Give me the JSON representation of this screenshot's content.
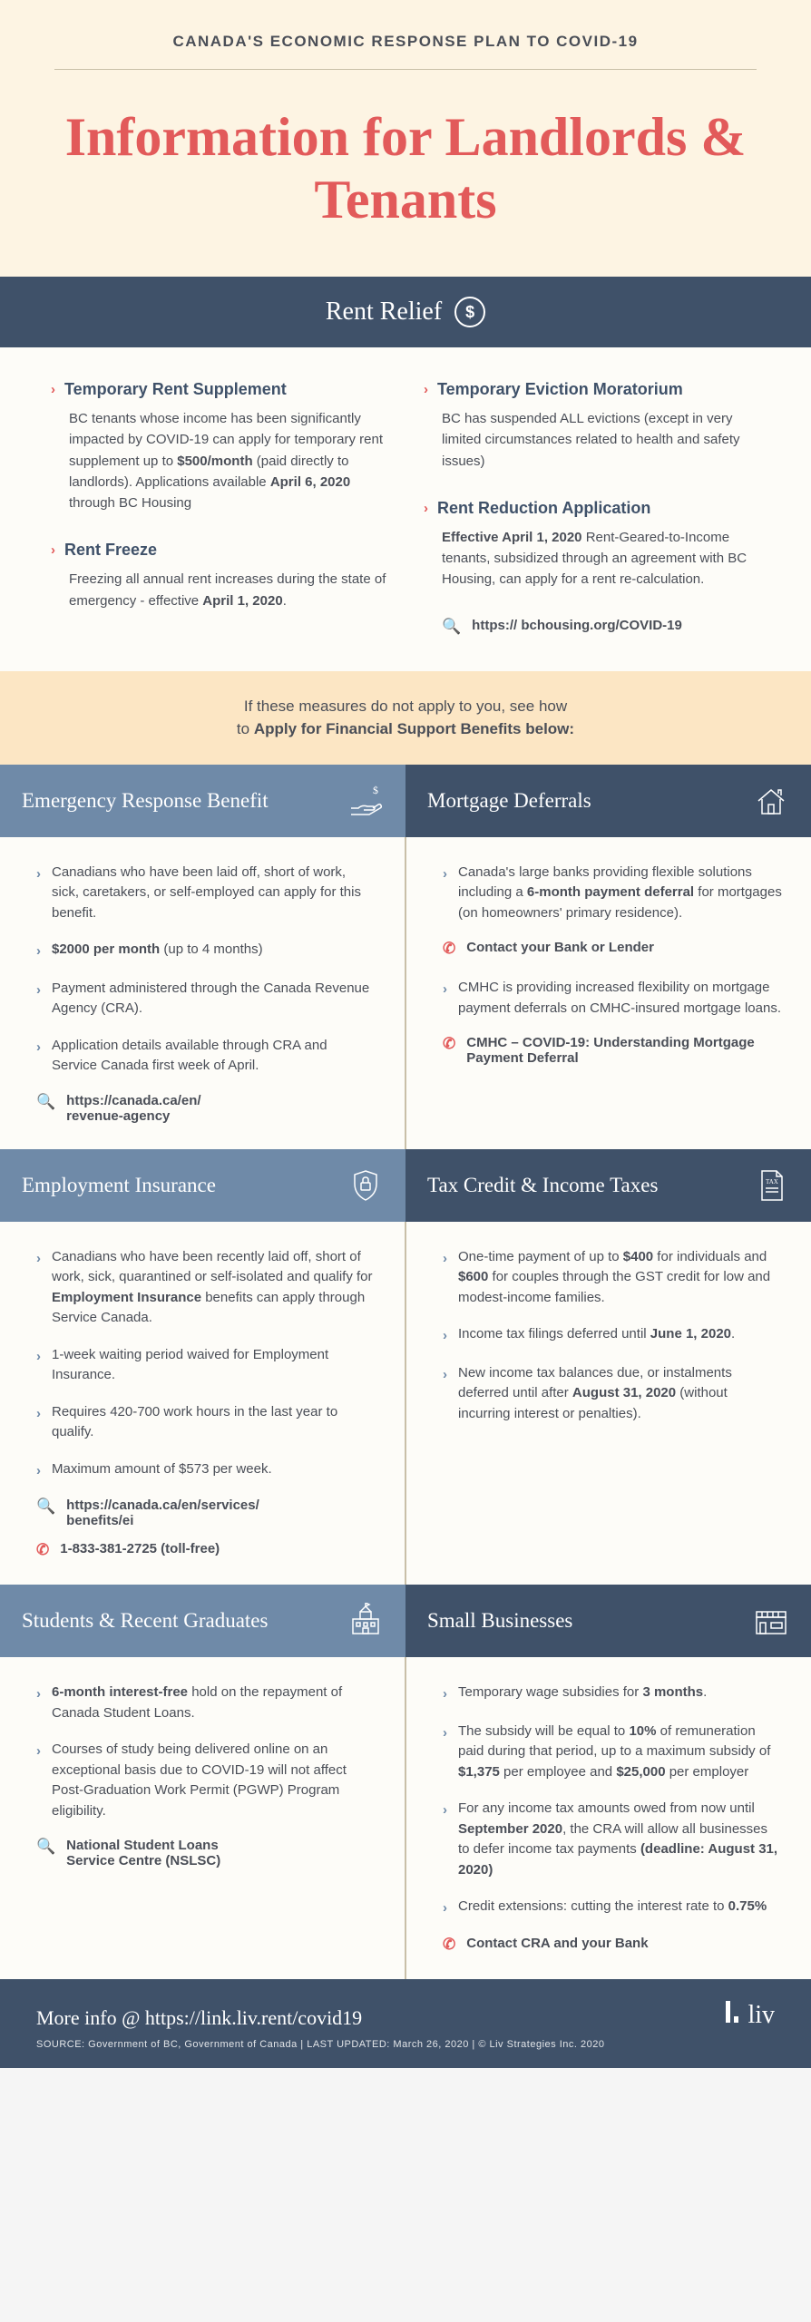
{
  "header": {
    "kicker": "CANADA'S ECONOMIC RESPONSE PLAN TO COVID-19",
    "title": "Information for Landlords & Tenants"
  },
  "rentRelief": {
    "bar": "Rent Relief",
    "left": [
      {
        "title": "Temporary Rent Supplement",
        "body": "BC tenants whose income has been significantly impacted by COVID-19 can apply for temporary rent supplement up to <b>$500/month</b> (paid directly to landlords). Applications available <b>April 6, 2020</b> through BC Housing"
      },
      {
        "title": "Rent Freeze",
        "body": "Freezing all annual rent increases during the state of emergency - effective <b>April 1, 2020</b>."
      }
    ],
    "right": [
      {
        "title": "Temporary Eviction Moratorium",
        "body": "BC has suspended ALL evictions (except in very limited circumstances related to health and safety issues)"
      },
      {
        "title": "Rent Reduction Application",
        "body": "<b>Effective April 1, 2020</b> Rent-Geared-to-Income tenants, subsidized through an agreement with BC Housing, can apply for a rent re-calculation."
      }
    ],
    "link": "https:// bchousing.org/COVID-19"
  },
  "bandText": "If these measures do not apply to you, see how<br>to <b>Apply for Financial Support Benefits below:</b>",
  "erb": {
    "title": "Emergency Response Benefit",
    "bullets": [
      "Canadians who have been laid off, short of work, sick, caretakers, or self-employed can apply for this benefit.",
      "<b>$2000 per month</b> (up to 4 months)",
      "Payment administered through the Canada Revenue Agency (CRA).",
      "Application details available through CRA and Service Canada first week of April."
    ],
    "link": "https://canada.ca/en/<br>revenue-agency"
  },
  "mortgage": {
    "title": "Mortgage Deferrals",
    "groups": [
      {
        "text": "Canada's large banks providing flexible solutions including a <b>6-month payment deferral</b> for mortgages (on homeowners' primary residence).",
        "phone": "Contact your Bank or Lender"
      },
      {
        "text": "CMHC is providing increased flexibility on mortgage payment deferrals on CMHC-insured mortgage loans.",
        "phone": "CMHC – COVID-19: Understanding Mortgage Payment Deferral"
      }
    ]
  },
  "ei": {
    "title": "Employment Insurance",
    "bullets": [
      "Canadians who have been recently laid off, short of work, sick, quarantined or self-isolated and qualify for <b>Employment Insurance</b> benefits can apply through Service Canada.",
      "1-week waiting period waived for Employment Insurance.",
      "Requires 420-700 work hours in the last year to qualify.",
      "Maximum amount of $573 per week."
    ],
    "link": "https://canada.ca/en/services/<br>benefits/ei",
    "phone": "1-833-381-2725 (toll-free)"
  },
  "tax": {
    "title": "Tax Credit & Income Taxes",
    "bullets": [
      "One-time payment of up to <b>$400</b> for individuals and <b>$600</b> for couples through the GST credit for low and modest-income families.",
      "Income tax filings deferred until <b>June 1, 2020</b>.",
      "New income tax balances due, or instalments deferred until after <b>August 31, 2020</b> (without incurring interest or penalties)."
    ]
  },
  "students": {
    "title": "Students & Recent Graduates",
    "bullets": [
      "<b>6-month interest-free</b> hold on the repayment of Canada Student Loans.",
      "Courses of study being delivered online on an exceptional basis due to COVID-19 will not affect Post-Graduation Work Permit (PGWP) Program eligibility."
    ],
    "link": "National Student Loans<br>Service Centre (NSLSC)"
  },
  "smallbiz": {
    "title": "Small Businesses",
    "bullets": [
      "Temporary wage subsidies for <b>3 months</b>.",
      "The subsidy will be equal to <b>10%</b> of remuneration paid during that period, up to a maximum subsidy of <b>$1,375</b> per employee and <b>$25,000</b> per employer",
      "For any income tax amounts owed from now until <b>September 2020</b>, the CRA will allow all businesses to defer income tax payments <b>(deadline: August 31, 2020)</b>",
      "Credit extensions: cutting the interest rate to <b>0.75%</b>"
    ],
    "phone": "Contact CRA and your Bank"
  },
  "footer": {
    "moreInfo": "More info @ https://link.liv.rent/covid19",
    "source": "SOURCE: Government of BC, Government of Canada   |   LAST UPDATED: March 26, 2020   |   © Liv Strategies Inc. 2020",
    "logo": "liv"
  }
}
